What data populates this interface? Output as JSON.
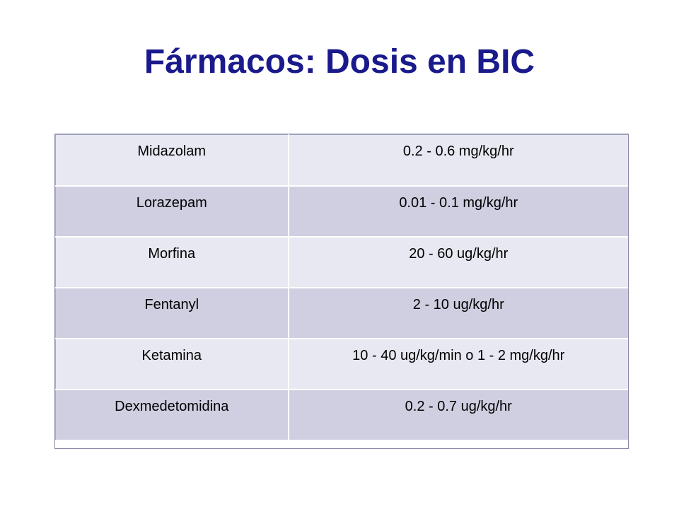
{
  "slide": {
    "title": "Fármacos: Dosis en BIC"
  },
  "table": {
    "rows": [
      {
        "drug": "Midazolam",
        "dose": "0.2 - 0.6 mg/kg/hr"
      },
      {
        "drug": "Lorazepam",
        "dose": "0.01 - 0.1 mg/kg/hr"
      },
      {
        "drug": "Morfina",
        "dose": "20 - 60 ug/kg/hr"
      },
      {
        "drug": "Fentanyl",
        "dose": "2 - 10 ug/kg/hr"
      },
      {
        "drug": "Ketamina",
        "dose": "10 - 40 ug/kg/min o 1 - 2 mg/kg/hr"
      },
      {
        "drug": "Dexmedetomidina",
        "dose": "0.2 - 0.7 ug/kg/hr"
      }
    ]
  },
  "colors": {
    "title": "#1a1a8c",
    "row_light": "#e8e8f2",
    "row_dark": "#cfcfe1"
  }
}
